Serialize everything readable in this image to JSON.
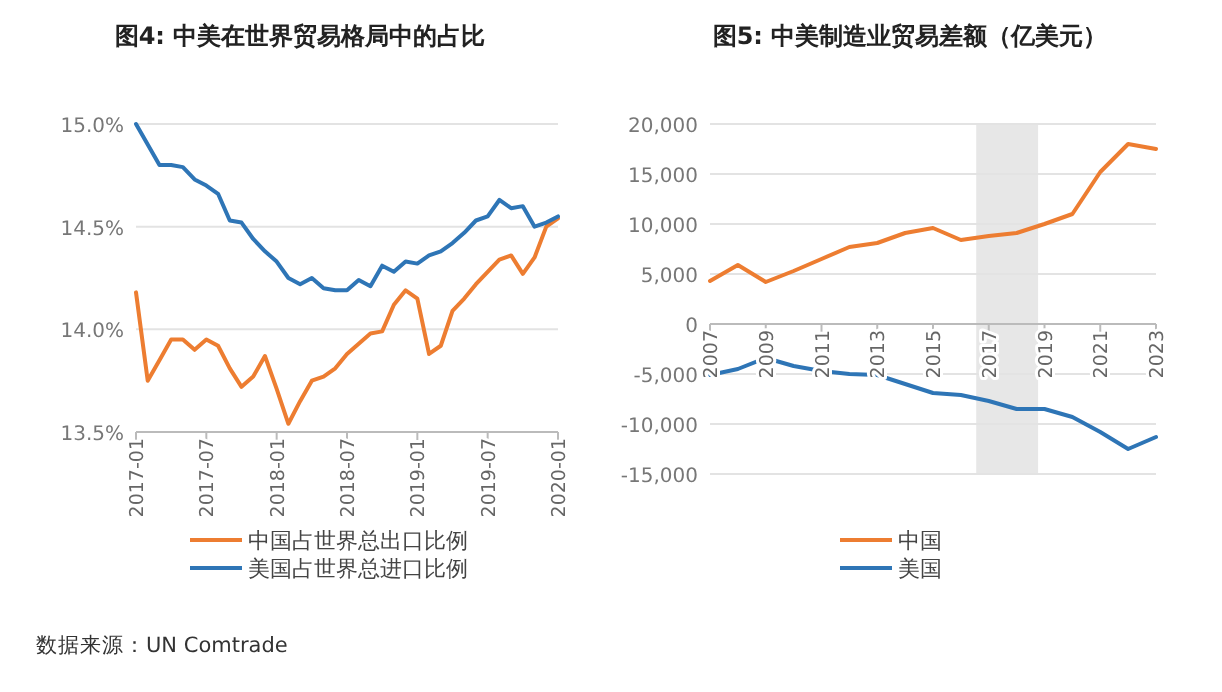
{
  "chart_data": [
    {
      "type": "line",
      "title": "图4: 中美在世界贸易格局中的占比",
      "x": [
        "2017-01",
        "2017-02",
        "2017-03",
        "2017-04",
        "2017-05",
        "2017-06",
        "2017-07",
        "2017-08",
        "2017-09",
        "2017-10",
        "2017-11",
        "2017-12",
        "2018-01",
        "2018-02",
        "2018-03",
        "2018-04",
        "2018-05",
        "2018-06",
        "2018-07",
        "2018-08",
        "2018-09",
        "2018-10",
        "2018-11",
        "2018-12",
        "2019-01",
        "2019-02",
        "2019-03",
        "2019-04",
        "2019-05",
        "2019-06",
        "2019-07",
        "2019-08",
        "2019-09",
        "2019-10",
        "2019-11",
        "2019-12",
        "2020-01"
      ],
      "series": [
        {
          "name": "中国占世界总出口比例",
          "color": "#ed7d31",
          "values": [
            14.18,
            13.75,
            13.85,
            13.95,
            13.95,
            13.9,
            13.95,
            13.92,
            13.81,
            13.72,
            13.77,
            13.87,
            13.71,
            13.54,
            13.65,
            13.75,
            13.77,
            13.81,
            13.88,
            13.93,
            13.98,
            13.99,
            14.12,
            14.19,
            14.15,
            13.88,
            13.92,
            14.09,
            14.15,
            14.22,
            14.28,
            14.34,
            14.36,
            14.27,
            14.35,
            14.5,
            14.54
          ]
        },
        {
          "name": "美国占世界总进口比例",
          "color": "#2e75b6",
          "values": [
            15.0,
            14.9,
            14.8,
            14.8,
            14.79,
            14.73,
            14.7,
            14.66,
            14.53,
            14.52,
            14.44,
            14.38,
            14.33,
            14.25,
            14.22,
            14.25,
            14.2,
            14.19,
            14.19,
            14.24,
            14.21,
            14.31,
            14.28,
            14.33,
            14.32,
            14.36,
            14.38,
            14.42,
            14.47,
            14.53,
            14.55,
            14.63,
            14.59,
            14.6,
            14.5,
            14.52,
            14.55
          ]
        }
      ],
      "xlim": [
        "2017-01",
        "2020-01"
      ],
      "xticks": [
        "2017-01",
        "2017-07",
        "2018-01",
        "2018-07",
        "2019-01",
        "2019-07",
        "2020-01"
      ],
      "ylim": [
        13.5,
        15.0
      ],
      "yticks": [
        {
          "value": 13.5,
          "label": "13.5%"
        },
        {
          "value": 14.0,
          "label": "14.0%"
        },
        {
          "value": 14.5,
          "label": "14.5%"
        },
        {
          "value": 15.0,
          "label": "15.0%"
        }
      ],
      "grid": "y",
      "legend": "bottom",
      "annotations": [
        "数据来源：UN Comtrade"
      ]
    },
    {
      "type": "line",
      "title": "图5: 中美制造业贸易差额（亿美元）",
      "x": [
        2007,
        2008,
        2009,
        2010,
        2011,
        2012,
        2013,
        2014,
        2015,
        2016,
        2017,
        2018,
        2019,
        2020,
        2021,
        2022,
        2023
      ],
      "series": [
        {
          "name": "中国",
          "color": "#ed7d31",
          "values": [
            4300,
            5900,
            4200,
            5300,
            6500,
            7700,
            8100,
            9100,
            9600,
            8400,
            8800,
            9100,
            10000,
            11000,
            15200,
            18000,
            17500
          ]
        },
        {
          "name": "美国",
          "color": "#2e75b6",
          "values": [
            -5100,
            -4500,
            -3400,
            -4200,
            -4700,
            -5000,
            -5100,
            -6000,
            -6900,
            -7100,
            -7700,
            -8500,
            -8500,
            -9300,
            -10800,
            -12500,
            -11300
          ]
        }
      ],
      "xlim": [
        2007,
        2023
      ],
      "xticks": [
        2007,
        2009,
        2011,
        2013,
        2015,
        2017,
        2019,
        2021,
        2023
      ],
      "ylim": [
        -15000,
        20000
      ],
      "yticks": [
        {
          "value": -15000,
          "label": "-15,000"
        },
        {
          "value": -10000,
          "label": "-10,000"
        },
        {
          "value": -5000,
          "label": "-5,000"
        },
        {
          "value": 0,
          "label": "0"
        },
        {
          "value": 5000,
          "label": "5,000"
        },
        {
          "value": 10000,
          "label": "10,000"
        },
        {
          "value": 15000,
          "label": "15,000"
        },
        {
          "value": 20000,
          "label": "20,000"
        }
      ],
      "bands": [
        {
          "axis": "x",
          "from": 2016.55,
          "to": 2018.77,
          "color": "#e7e7e7"
        }
      ],
      "grid": "y",
      "legend": "bottom"
    }
  ]
}
